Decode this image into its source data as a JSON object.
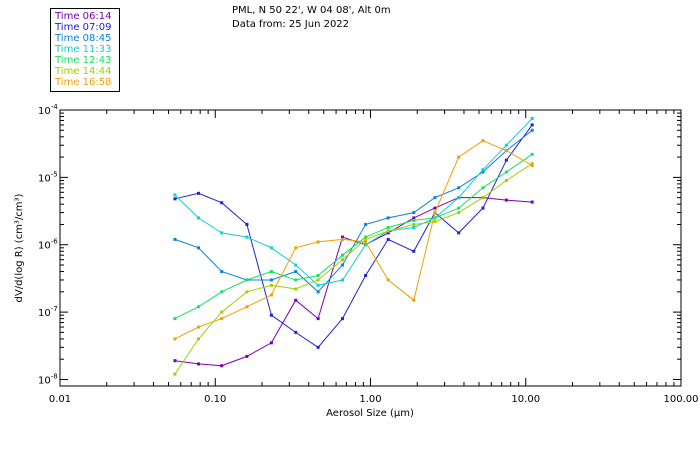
{
  "header": {
    "line1": "PML, N 50 22', W 04 08', Alt 0m",
    "line2": "Data from: 25 Jun 2022"
  },
  "chart_data": {
    "type": "line",
    "title": "PML, N 50 22', W 04 08', Alt 0m",
    "subtitle": "Data from: 25 Jun 2022",
    "xlabel": "Aerosol Size (μm)",
    "ylabel": "dV/d(log R) (cm³/cm³)",
    "xscale": "log",
    "yscale": "log",
    "xlim": [
      0.01,
      100
    ],
    "ylim": [
      8e-09,
      0.0001
    ],
    "grid": false,
    "legend_position": "top-left",
    "x_tick_labels": [
      "0.01",
      "0.10",
      "1.00",
      "10.00",
      "100.00"
    ],
    "x_tick_values": [
      0.01,
      0.1,
      1,
      10,
      100
    ],
    "y_tick_labels": [
      {
        "base": "10",
        "exp": "-4",
        "value": 0.0001
      },
      {
        "base": "10",
        "exp": "-5",
        "value": 1e-05
      },
      {
        "base": "10",
        "exp": "-6",
        "value": 1e-06
      },
      {
        "base": "10",
        "exp": "-7",
        "value": 1e-07
      },
      {
        "base": "10",
        "exp": "-8",
        "value": 1e-08
      }
    ],
    "x": [
      0.055,
      0.078,
      0.11,
      0.16,
      0.23,
      0.33,
      0.46,
      0.66,
      0.93,
      1.3,
      1.9,
      2.6,
      3.7,
      5.3,
      7.5,
      11.0
    ],
    "series": [
      {
        "name": "Time 06:14",
        "color": "#7a00b8",
        "values": [
          1.9e-08,
          1.7e-08,
          1.6e-08,
          2.2e-08,
          3.5e-08,
          1.5e-07,
          8e-08,
          1.3e-06,
          1e-06,
          1.5e-06,
          2.5e-06,
          3.5e-06,
          5e-06,
          5e-06,
          4.6e-06,
          4.3e-06
        ]
      },
      {
        "name": "Time 07:09",
        "color": "#2020d8",
        "values": [
          4.8e-06,
          5.8e-06,
          4.2e-06,
          2e-06,
          9e-08,
          5e-08,
          3e-08,
          8e-08,
          3.5e-07,
          1.2e-06,
          8e-07,
          3e-06,
          1.5e-06,
          3.5e-06,
          1.8e-05,
          6e-05
        ]
      },
      {
        "name": "Time 08:45",
        "color": "#0a80e0",
        "values": [
          1.2e-06,
          9e-07,
          4e-07,
          3e-07,
          3e-07,
          4e-07,
          2e-07,
          5e-07,
          2e-06,
          2.5e-06,
          3e-06,
          5e-06,
          7e-06,
          1.2e-05,
          2.5e-05,
          5e-05
        ]
      },
      {
        "name": "Time 11:33",
        "color": "#10d0d0",
        "values": [
          5.5e-06,
          2.5e-06,
          1.5e-06,
          1.3e-06,
          9e-07,
          5e-07,
          2.5e-07,
          3e-07,
          1e-06,
          1.6e-06,
          1.8e-06,
          2.5e-06,
          5e-06,
          1.3e-05,
          3e-05,
          7.5e-05
        ]
      },
      {
        "name": "Time 12:43",
        "color": "#18e060",
        "values": [
          8e-08,
          1.2e-07,
          2e-07,
          3e-07,
          4e-07,
          3e-07,
          3.5e-07,
          7e-07,
          1.3e-06,
          1.8e-06,
          2.3e-06,
          2.5e-06,
          3.5e-06,
          7e-06,
          1.2e-05,
          2.2e-05
        ]
      },
      {
        "name": "Time 14:44",
        "color": "#a0d000",
        "values": [
          1.2e-08,
          4e-08,
          1e-07,
          2e-07,
          2.5e-07,
          2.2e-07,
          3e-07,
          6e-07,
          1.2e-06,
          1.6e-06,
          2e-06,
          2.2e-06,
          3e-06,
          5e-06,
          9e-06,
          1.6e-05
        ]
      },
      {
        "name": "Time 16:58",
        "color": "#f0a000",
        "values": [
          4e-08,
          6e-08,
          8e-08,
          1.2e-07,
          1.8e-07,
          9e-07,
          1.1e-06,
          1.2e-06,
          1.1e-06,
          3e-07,
          1.5e-07,
          3e-06,
          2e-05,
          3.5e-05,
          2.5e-05,
          1.5e-05
        ]
      }
    ]
  }
}
